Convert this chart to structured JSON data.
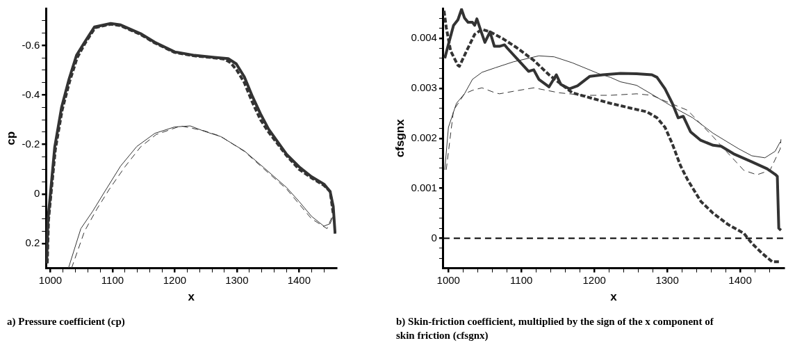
{
  "chart_data": [
    {
      "type": "line",
      "title": "a) Pressure coefficient (cp)",
      "xlabel": "x",
      "ylabel": "cp",
      "xlim": [
        993,
        1460
      ],
      "xticks": [
        1000,
        {
          "value": 1020,
          "label": null
        },
        {
          "value": 1040,
          "label": null
        },
        {
          "value": 1060,
          "label": null
        },
        {
          "value": 1080,
          "label": null
        },
        1100,
        {
          "value": 1120,
          "label": null
        },
        {
          "value": 1140,
          "label": null
        },
        {
          "value": 1160,
          "label": null
        },
        {
          "value": 1180,
          "label": null
        },
        1200,
        {
          "value": 1220,
          "label": null
        },
        {
          "value": 1240,
          "label": null
        },
        {
          "value": 1260,
          "label": null
        },
        {
          "value": 1280,
          "label": null
        },
        1300,
        {
          "value": 1320,
          "label": null
        },
        {
          "value": 1340,
          "label": null
        },
        {
          "value": 1360,
          "label": null
        },
        {
          "value": 1380,
          "label": null
        },
        1400,
        {
          "value": 1420,
          "label": null
        },
        {
          "value": 1440,
          "label": null
        }
      ],
      "ylim": [
        0.3,
        -0.75
      ],
      "yticks": [
        0.2,
        {
          "value": 0.15,
          "label": null
        },
        {
          "value": 0.1,
          "label": null
        },
        {
          "value": 0.05,
          "label": null
        },
        0,
        {
          "value": -0.05,
          "label": null
        },
        {
          "value": -0.1,
          "label": null
        },
        {
          "value": -0.15,
          "label": null
        },
        -0.2,
        {
          "value": -0.25,
          "label": null
        },
        {
          "value": -0.3,
          "label": null
        },
        {
          "value": -0.35,
          "label": null
        },
        -0.4,
        {
          "value": -0.45,
          "label": null
        },
        {
          "value": -0.5,
          "label": null
        },
        {
          "value": -0.55,
          "label": null
        },
        -0.6,
        {
          "value": -0.65,
          "label": null
        },
        {
          "value": -0.7,
          "label": null
        }
      ],
      "grid": false,
      "legend": false,
      "marker": "none",
      "series": [
        {
          "color": "#333333",
          "line_style": "solid",
          "x": [
            994,
            996,
            1000,
            1007,
            1018,
            1030,
            1042,
            1055,
            1071,
            1097,
            1113,
            1145,
            1168,
            1200,
            1232,
            1264,
            1286,
            1299,
            1312,
            1325,
            1338,
            1351,
            1380,
            1400,
            1420,
            1440,
            1450,
            1455,
            1458
          ],
          "values": [
            0.28,
            0.105,
            0,
            -0.19,
            -0.35,
            -0.464,
            -0.56,
            -0.613,
            -0.675,
            -0.689,
            -0.683,
            -0.648,
            -0.613,
            -0.574,
            -0.56,
            -0.552,
            -0.547,
            -0.526,
            -0.473,
            -0.394,
            -0.324,
            -0.262,
            -0.16,
            -0.11,
            -0.07,
            -0.04,
            -0.01,
            0.05,
            0.16
          ]
        },
        {
          "color": "#333333",
          "line_style": "dashed",
          "x": [
            995,
            997,
            1001,
            1008,
            1019,
            1031,
            1043,
            1056,
            1072,
            1097,
            1113,
            1145,
            1168,
            1200,
            1232,
            1264,
            1280,
            1290,
            1300,
            1312,
            1325,
            1338,
            1351,
            1380,
            1400,
            1420,
            1440,
            1450,
            1455
          ],
          "values": [
            0.28,
            0.105,
            0,
            -0.18,
            -0.34,
            -0.455,
            -0.55,
            -0.61,
            -0.672,
            -0.686,
            -0.68,
            -0.645,
            -0.61,
            -0.572,
            -0.558,
            -0.55,
            -0.545,
            -0.53,
            -0.5,
            -0.45,
            -0.37,
            -0.3,
            -0.25,
            -0.155,
            -0.1,
            -0.065,
            -0.035,
            -0.01,
            0.08
          ]
        },
        {
          "color": "#333333",
          "line_style": "solid",
          "x": [
            1029,
            1049,
            1068,
            1087,
            1113,
            1139,
            1168,
            1200,
            1225,
            1248,
            1274,
            1312,
            1344,
            1380,
            1400,
            1420,
            1440,
            1450,
            1455
          ],
          "values": [
            0.3,
            0.14,
            0.07,
            -0.008,
            -0.113,
            -0.192,
            -0.245,
            -0.271,
            -0.275,
            -0.253,
            -0.232,
            -0.174,
            -0.105,
            -0.026,
            0.03,
            0.09,
            0.13,
            0.12,
            0.09
          ]
        },
        {
          "color": "#333333",
          "line_style": "dashed",
          "x": [
            1034,
            1055,
            1075,
            1095,
            1120,
            1145,
            1170,
            1210,
            1248,
            1274,
            1312,
            1344,
            1380,
            1400,
            1420,
            1445,
            1455
          ],
          "values": [
            0.3,
            0.15,
            0.06,
            -0.02,
            -0.11,
            -0.19,
            -0.24,
            -0.275,
            -0.255,
            -0.233,
            -0.172,
            -0.1,
            -0.02,
            0.04,
            0.1,
            0.14,
            0.08
          ]
        }
      ]
    },
    {
      "type": "line",
      "title": "b) Skin-friction coefficient, multiplied by the sign of the x component of skin friction (cfsgnx)",
      "xlabel": "x",
      "ylabel": "cfsgnx",
      "xlim": [
        993,
        1460
      ],
      "xticks": [
        1000,
        {
          "value": 1020,
          "label": null
        },
        {
          "value": 1040,
          "label": null
        },
        {
          "value": 1060,
          "label": null
        },
        {
          "value": 1080,
          "label": null
        },
        1100,
        {
          "value": 1120,
          "label": null
        },
        {
          "value": 1140,
          "label": null
        },
        {
          "value": 1160,
          "label": null
        },
        {
          "value": 1180,
          "label": null
        },
        1200,
        {
          "value": 1220,
          "label": null
        },
        {
          "value": 1240,
          "label": null
        },
        {
          "value": 1260,
          "label": null
        },
        {
          "value": 1280,
          "label": null
        },
        1300,
        {
          "value": 1320,
          "label": null
        },
        {
          "value": 1340,
          "label": null
        },
        {
          "value": 1360,
          "label": null
        },
        {
          "value": 1380,
          "label": null
        },
        1400,
        {
          "value": 1420,
          "label": null
        },
        {
          "value": 1440,
          "label": null
        }
      ],
      "ylim": [
        -0.0006,
        0.0046
      ],
      "yticks": [
        {
          "value": -0.0004,
          "label": null
        },
        {
          "value": -0.0002,
          "label": null
        },
        0,
        {
          "value": 0.0002,
          "label": null
        },
        {
          "value": 0.0004,
          "label": null
        },
        {
          "value": 0.0006,
          "label": null
        },
        {
          "value": 0.0008,
          "label": null
        },
        0.001,
        {
          "value": 0.0012,
          "label": null
        },
        {
          "value": 0.0014,
          "label": null
        },
        {
          "value": 0.0016,
          "label": null
        },
        {
          "value": 0.0018,
          "label": null
        },
        0.002,
        {
          "value": 0.0022,
          "label": null
        },
        {
          "value": 0.0024,
          "label": null
        },
        {
          "value": 0.0026,
          "label": null
        },
        {
          "value": 0.0028,
          "label": null
        },
        0.003,
        {
          "value": 0.0032,
          "label": null
        },
        {
          "value": 0.0034,
          "label": null
        },
        {
          "value": 0.0036,
          "label": null
        },
        {
          "value": 0.0038,
          "label": null
        },
        0.004,
        {
          "value": 0.0042,
          "label": null
        },
        {
          "value": 0.0044,
          "label": null
        }
      ],
      "grid": false,
      "legend": false,
      "marker": "none",
      "ref_lines": [
        {
          "axis": "y",
          "value": 0,
          "color": "#000000",
          "line_style": "dashed"
        }
      ],
      "series": [
        {
          "color": "#333333",
          "line_style": "solid",
          "x": [
            995,
            1000,
            1007,
            1013,
            1018,
            1022,
            1027,
            1033,
            1036,
            1039,
            1045,
            1050,
            1057,
            1063,
            1070,
            1077,
            1081,
            1096,
            1110,
            1117,
            1124,
            1138,
            1148,
            1154,
            1166,
            1177,
            1194,
            1212,
            1236,
            1258,
            1279,
            1286,
            1297,
            1307,
            1315,
            1322,
            1332,
            1346,
            1363,
            1374,
            1391,
            1416,
            1437,
            1448,
            1451,
            1453,
            1456
          ],
          "values": [
            0.0036,
            0.00388,
            0.00426,
            0.00437,
            0.00458,
            0.00441,
            0.00432,
            0.00432,
            0.00426,
            0.00439,
            0.00413,
            0.00392,
            0.00413,
            0.00384,
            0.00384,
            0.00387,
            0.0038,
            0.00356,
            0.00334,
            0.00337,
            0.00318,
            0.00303,
            0.00327,
            0.00308,
            0.00299,
            0.00305,
            0.00324,
            0.00327,
            0.0033,
            0.00329,
            0.00327,
            0.00322,
            0.00299,
            0.0027,
            0.00241,
            0.00244,
            0.00213,
            0.00196,
            0.00186,
            0.00184,
            0.00169,
            0.00153,
            0.00139,
            0.00128,
            0.00124,
            0.0002,
            0.00016
          ]
        },
        {
          "color": "#333333",
          "line_style": "dashed",
          "x": [
            994,
            997,
            1003,
            1013,
            1015,
            1025,
            1036,
            1046,
            1057,
            1075,
            1093,
            1117,
            1138,
            1170,
            1187,
            1222,
            1251,
            1272,
            1286,
            1297,
            1307,
            1318,
            1328,
            1346,
            1363,
            1384,
            1405,
            1416,
            1430,
            1444,
            1455
          ],
          "values": [
            0.00455,
            0.00422,
            0.00375,
            0.00346,
            0.00344,
            0.00375,
            0.00408,
            0.00418,
            0.00413,
            0.00399,
            0.00382,
            0.00356,
            0.00327,
            0.00291,
            0.00284,
            0.0027,
            0.0026,
            0.00253,
            0.00241,
            0.00222,
            0.00189,
            0.00146,
            0.00117,
            0.00074,
            0.0005,
            0.00027,
            0.0001,
            -0.0001,
            -0.0003,
            -0.00047,
            -0.00047
          ]
        },
        {
          "color": "#333333",
          "line_style": "solid",
          "x": [
            995,
            1000,
            1011,
            1022,
            1033,
            1046,
            1064,
            1089,
            1124,
            1145,
            1170,
            1205,
            1222,
            1236,
            1258,
            1286,
            1311,
            1335,
            1363,
            1398,
            1416,
            1434,
            1448,
            1455
          ],
          "values": [
            0.00137,
            0.00222,
            0.0027,
            0.00289,
            0.00318,
            0.00332,
            0.00341,
            0.00353,
            0.00365,
            0.00363,
            0.00351,
            0.0033,
            0.00322,
            0.00313,
            0.00306,
            0.00282,
            0.0026,
            0.00241,
            0.0021,
            0.00179,
            0.00165,
            0.00161,
            0.00174,
            0.00193
          ]
        },
        {
          "color": "#333333",
          "line_style": "dashed",
          "x": [
            997,
            1007,
            1022,
            1033,
            1046,
            1064,
            1070,
            1089,
            1117,
            1152,
            1187,
            1222,
            1258,
            1279,
            1293,
            1328,
            1363,
            1381,
            1405,
            1423,
            1441,
            1455,
            1456
          ],
          "values": [
            0.00137,
            0.00256,
            0.00289,
            0.00296,
            0.00301,
            0.00291,
            0.00289,
            0.00294,
            0.00301,
            0.00291,
            0.00286,
            0.00286,
            0.00289,
            0.00286,
            0.00277,
            0.00256,
            0.00203,
            0.00174,
            0.00136,
            0.00127,
            0.00136,
            0.00179,
            0.00198
          ]
        }
      ]
    }
  ]
}
